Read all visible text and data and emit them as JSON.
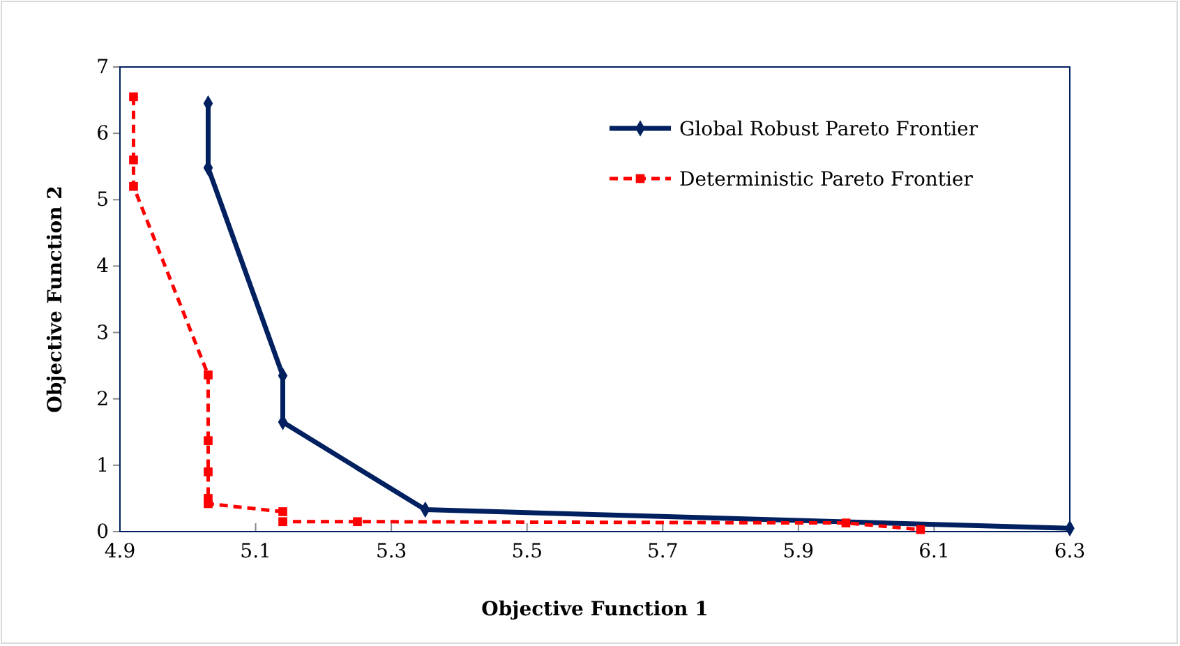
{
  "chart_data": {
    "type": "line",
    "xlabel": "Objective Function 1",
    "ylabel": "Objective Function 2",
    "xlim": [
      4.9,
      6.3
    ],
    "xticks": [
      4.9,
      5.1,
      5.3,
      5.5,
      5.7,
      5.9,
      6.1,
      6.3
    ],
    "ylim": [
      0,
      7
    ],
    "yticks": [
      0,
      1,
      2,
      3,
      4,
      5,
      6,
      7
    ],
    "grid": false,
    "legend": "top right",
    "series": [
      {
        "name": "Global Robust Pareto Frontier",
        "color": "#002060",
        "marker": "diamond",
        "line_style": "solid",
        "x": [
          5.03,
          5.03,
          5.14,
          5.14,
          5.35,
          6.3
        ],
        "values": [
          6.45,
          5.48,
          2.35,
          1.65,
          0.33,
          0.05
        ]
      },
      {
        "name": "Deterministic Pareto Frontier",
        "color": "#ff0000",
        "marker": "square",
        "line_style": "dashed",
        "x": [
          4.92,
          4.92,
          4.92,
          5.03,
          5.03,
          5.03,
          5.03,
          5.03,
          5.14,
          5.14,
          5.25,
          5.97,
          6.08
        ],
        "values": [
          6.55,
          5.6,
          5.2,
          2.36,
          1.37,
          0.9,
          0.5,
          0.42,
          0.3,
          0.15,
          0.15,
          0.13,
          0.03
        ]
      }
    ]
  }
}
